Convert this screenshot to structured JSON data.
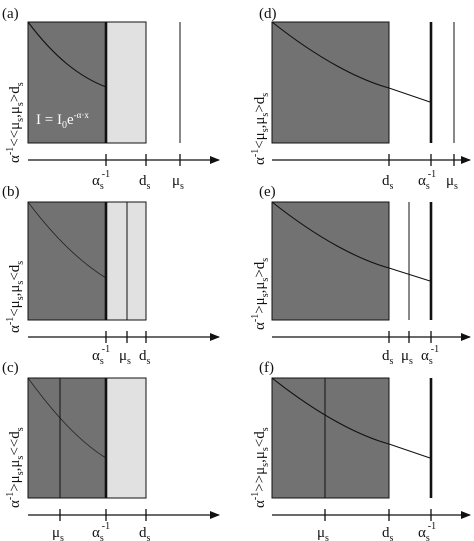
{
  "formula": {
    "lhs": "I = I",
    "sub": "0",
    "mid": "e",
    "exponent": "-α·x"
  },
  "panels": [
    {
      "letter": "(a)",
      "side_label": {
        "base": "α",
        "sup": "-1",
        "rest": "<<μ",
        "s1": "s",
        "rest2": ",μ",
        "s2": "s",
        "rest3": ">d",
        "s3": "s"
      },
      "ticks": [
        {
          "base": "α",
          "sub": "s",
          "sup": "-1"
        },
        {
          "base": "d",
          "sub": "s"
        },
        {
          "base": "μ",
          "sub": "s"
        }
      ]
    },
    {
      "letter": "(b)",
      "side_label": {
        "base": "α",
        "sup": "-1",
        "rest": "<μ",
        "s1": "s",
        "rest2": ",μ",
        "s2": "s",
        "rest3": "<d",
        "s3": "s"
      },
      "ticks": [
        {
          "base": "α",
          "sub": "s",
          "sup": "-1"
        },
        {
          "base": "μ",
          "sub": "s"
        },
        {
          "base": "d",
          "sub": "s"
        }
      ]
    },
    {
      "letter": "(c)",
      "side_label": {
        "base": "α",
        "sup": "-1",
        "rest": ">μ",
        "s1": "s",
        "rest2": ",μ",
        "s2": "s",
        "rest3": "<<d",
        "s3": "s"
      },
      "ticks": [
        {
          "base": "μ",
          "sub": "s"
        },
        {
          "base": "α",
          "sub": "s",
          "sup": "-1"
        },
        {
          "base": "d",
          "sub": "s"
        }
      ]
    },
    {
      "letter": "(d)",
      "side_label": {
        "base": "α",
        "sup": "-1",
        "rest": "<μ",
        "s1": "s",
        "rest2": ",μ",
        "s2": "s",
        "rest3": ">d",
        "s3": "s"
      },
      "ticks": [
        {
          "base": "d",
          "sub": "s"
        },
        {
          "base": "α",
          "sub": "s",
          "sup": "-1"
        },
        {
          "base": "μ",
          "sub": "s"
        }
      ]
    },
    {
      "letter": "(e)",
      "side_label": {
        "base": "α",
        "sup": "-1",
        "rest": ">μ",
        "s1": "s",
        "rest2": ",μ",
        "s2": "s",
        "rest3": ">d",
        "s3": "s"
      },
      "ticks": [
        {
          "base": "d",
          "sub": "s"
        },
        {
          "base": "μ",
          "sub": "s"
        },
        {
          "base": "α",
          "sub": "s",
          "sup": "-1"
        }
      ]
    },
    {
      "letter": "(f)",
      "side_label": {
        "base": "α",
        "sup": "-1",
        "rest": ">>μ",
        "s1": "s",
        "rest2": ",μ",
        "s2": "s",
        "rest3": "<d",
        "s3": "s"
      },
      "ticks": [
        {
          "base": "μ",
          "sub": "s"
        },
        {
          "base": "d",
          "sub": "s"
        },
        {
          "base": "α",
          "sub": "s",
          "sup": "-1"
        }
      ]
    }
  ]
}
